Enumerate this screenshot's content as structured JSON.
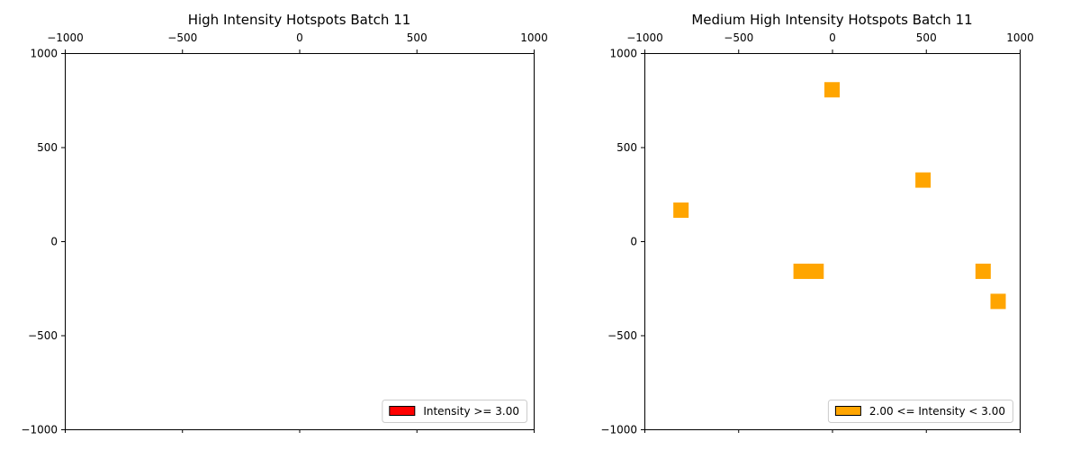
{
  "chart_data": [
    {
      "type": "scatter",
      "title": "High Intensity Hotspots Batch 11",
      "xlim": [
        -1000,
        1000
      ],
      "ylim": [
        -1000,
        1000
      ],
      "x_ticks": [
        -1000,
        -500,
        0,
        500,
        1000
      ],
      "y_ticks": [
        1000,
        500,
        0,
        -500,
        -1000
      ],
      "x_tick_labels": [
        "−1000",
        "−500",
        "0",
        "500",
        "1000"
      ],
      "y_tick_labels": [
        "1000",
        "500",
        "0",
        "−500",
        "−1000"
      ],
      "x_axis_position": "top",
      "grid": false,
      "legend": {
        "position": "lower-right",
        "entries": [
          {
            "label": "Intensity >= 3.00",
            "color": "#ff0000"
          }
        ]
      },
      "marker": "square",
      "color": "#ff0000",
      "points": []
    },
    {
      "type": "scatter",
      "title": "Medium High Intensity Hotspots Batch 11",
      "xlim": [
        -1000,
        1000
      ],
      "ylim": [
        -1000,
        1000
      ],
      "x_ticks": [
        -1000,
        -500,
        0,
        500,
        1000
      ],
      "y_ticks": [
        1000,
        500,
        0,
        -500,
        -1000
      ],
      "x_tick_labels": [
        "−1000",
        "−500",
        "0",
        "500",
        "1000"
      ],
      "y_tick_labels": [
        "1000",
        "500",
        "0",
        "−500",
        "−1000"
      ],
      "x_axis_position": "top",
      "grid": false,
      "legend": {
        "position": "lower-right",
        "entries": [
          {
            "label": "2.00 <= Intensity < 3.00",
            "color": "#ffa500"
          }
        ]
      },
      "marker": "square",
      "color": "#ffa500",
      "points": [
        {
          "x": 0,
          "y": 805
        },
        {
          "x": 485,
          "y": 325
        },
        {
          "x": -805,
          "y": 165
        },
        {
          "x": -165,
          "y": -160
        },
        {
          "x": -85,
          "y": -160
        },
        {
          "x": 805,
          "y": -160
        },
        {
          "x": 885,
          "y": -320
        }
      ]
    }
  ]
}
